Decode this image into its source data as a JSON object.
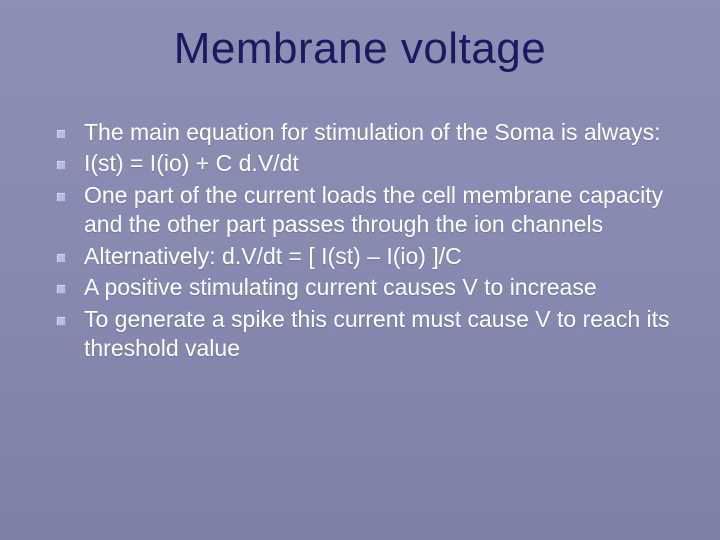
{
  "slide": {
    "title": "Membrane voltage",
    "title_color": "#1a1a60",
    "title_fontsize": 44,
    "background_gradient_top": "#8d8fb5",
    "background_gradient_bottom": "#7e80a8",
    "bullet_marker_color": "#b9bde0",
    "body_text_color": "#ffffff",
    "body_fontsize": 23,
    "bullets": [
      "The main equation for stimulation of the Soma is always:",
      "I(st) = I(io) + C d.V/dt",
      "One part of the current loads the cell membrane capacity and the other part passes through the ion channels",
      "Alternatively: d.V/dt = [ I(st) – I(io) ]/C",
      "A positive stimulating current causes V to increase",
      "To generate a spike this current must cause V to reach its threshold value"
    ]
  }
}
